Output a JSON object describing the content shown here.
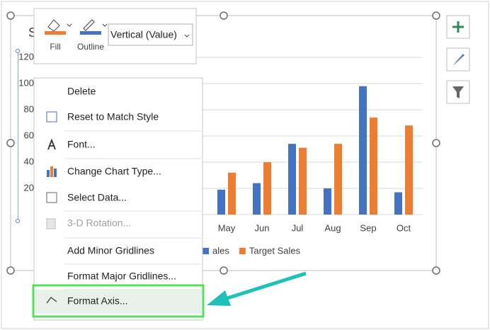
{
  "toolbar": {
    "fill": "Fill",
    "outline": "Outline",
    "dropdown": "Vertical (Value)"
  },
  "chart_data": {
    "type": "bar",
    "title": "S",
    "categories": [
      "May",
      "Jun",
      "Jul",
      "Aug",
      "Sep",
      "Oct"
    ],
    "series": [
      {
        "name": "ales",
        "color": "#4472c4",
        "values": [
          19,
          24,
          54,
          20,
          98,
          17
        ]
      },
      {
        "name": "Target Sales",
        "color": "#ed7d31",
        "values": [
          32,
          40,
          51,
          54,
          74,
          68
        ]
      }
    ],
    "ylim": [
      0,
      120
    ],
    "yticks": [
      20,
      40,
      60,
      80,
      100,
      120
    ],
    "grid": true
  },
  "menu": {
    "items": [
      {
        "label": "Delete",
        "enabled": true
      },
      {
        "label": "Reset to Match Style",
        "enabled": true
      },
      {
        "label": "Font...",
        "enabled": true
      },
      {
        "label": "Change Chart Type...",
        "enabled": true
      },
      {
        "label": "Select Data...",
        "enabled": true
      },
      {
        "label": "3-D Rotation...",
        "enabled": false
      },
      {
        "label": "Add Minor Gridlines",
        "enabled": true
      },
      {
        "label": "Format Major Gridlines...",
        "enabled": true
      },
      {
        "label": "Format Axis...",
        "enabled": true
      }
    ],
    "highlighted": 8
  }
}
